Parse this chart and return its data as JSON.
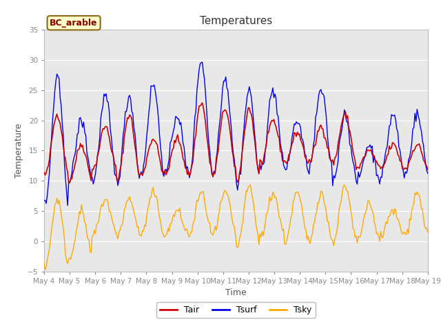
{
  "title": "Temperatures",
  "xlabel": "Time",
  "ylabel": "Temperature",
  "ylim": [
    -5,
    35
  ],
  "xtick_labels": [
    "May 4",
    "May 5",
    "May 6",
    "May 7",
    "May 8",
    "May 9",
    "May 10",
    "May 11",
    "May 12",
    "May 13",
    "May 14",
    "May 15",
    "May 16",
    "May 17",
    "May 18",
    "May 19"
  ],
  "annotation": "BC_arable",
  "plot_bg_color": "#e8e8e8",
  "fig_bg_color": "#ffffff",
  "tair_color": "#cc0000",
  "tsurf_color": "#0000ee",
  "tsky_color": "#ffaa00",
  "legend_labels": [
    "Tair",
    "Tsurf",
    "Tsky"
  ],
  "title_fontsize": 11,
  "axis_label_fontsize": 9,
  "tick_fontsize": 7.5,
  "legend_fontsize": 9,
  "yticks": [
    -5,
    0,
    5,
    10,
    15,
    20,
    25,
    30,
    35
  ],
  "n_points": 360,
  "n_days": 16,
  "tair_peaks": [
    21,
    16,
    19,
    21,
    17,
    17,
    23,
    22,
    22,
    20,
    18,
    19,
    21,
    15,
    16,
    16
  ],
  "tair_troughs": [
    11,
    10,
    12,
    10,
    11,
    11,
    11,
    11,
    10,
    13,
    13,
    13,
    13,
    12,
    12,
    12
  ],
  "tsurf_peaks": [
    27,
    20,
    24,
    24,
    26,
    21,
    30,
    27,
    25,
    25,
    20,
    25,
    21,
    16,
    21,
    21
  ],
  "tsurf_troughs": [
    6,
    10,
    10,
    10,
    11,
    11,
    11,
    11,
    9,
    12,
    12,
    12,
    10,
    10,
    11,
    11
  ],
  "tsky_peaks": [
    7,
    5,
    7,
    7,
    8,
    5,
    8,
    8,
    9,
    8,
    8,
    8,
    9,
    6,
    5,
    8
  ],
  "tsky_troughs": [
    -4,
    -3,
    1,
    1,
    1,
    1,
    1,
    1,
    -1,
    1,
    0,
    0,
    0,
    0,
    1,
    1
  ],
  "phase_shift": 0.3,
  "tair_noise": 0.3,
  "tsurf_noise": 0.5,
  "tsky_noise": 0.4
}
